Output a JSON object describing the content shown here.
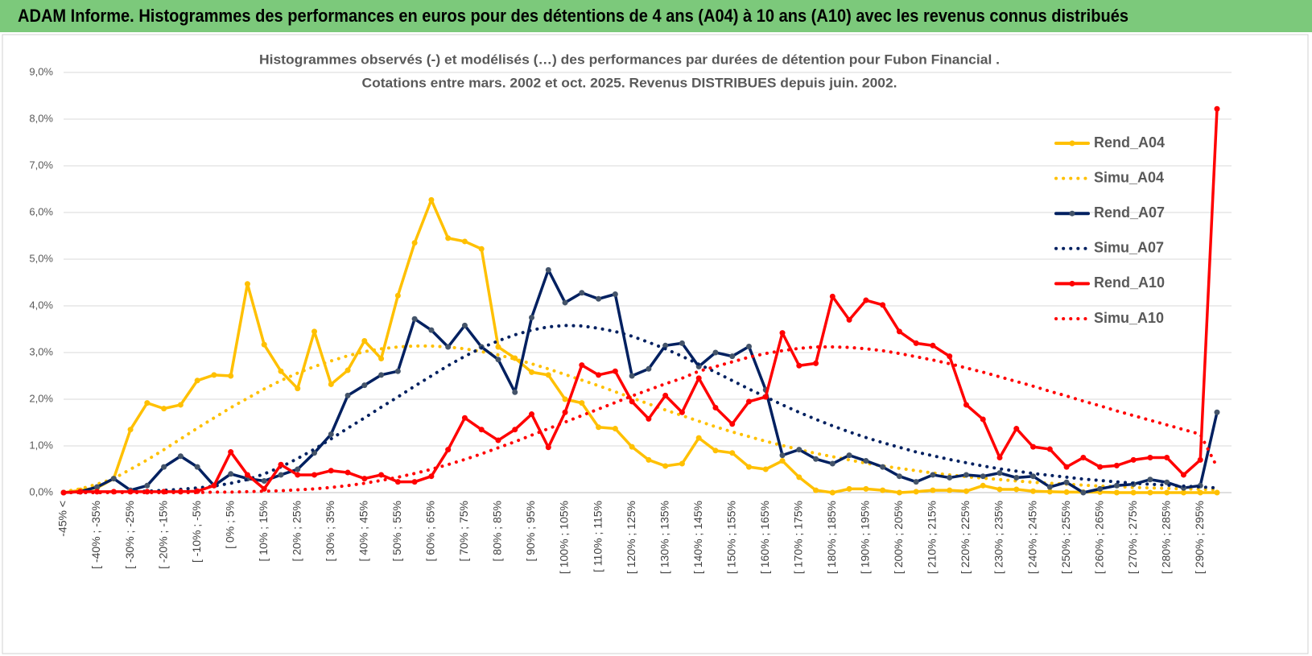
{
  "header": {
    "title": "ADAM Informe. Histogrammes des performances en euros pour des détentions de 4 ans (A04) à 10 ans (A10) avec les revenus connus distribués"
  },
  "chart_data": {
    "type": "line",
    "title": [
      "Histogrammes observés (-) et modélisés (…) des performances par durées de détention pour Fubon Financial .",
      "Cotations entre mars. 2002 et oct. 2025. Revenus DISTRIBUES depuis juin. 2002."
    ],
    "categories": [
      "-45% <",
      null,
      "[ -40% ; -35%",
      null,
      "[ -30% ; -25%",
      null,
      "[ -20% ; -15%",
      null,
      "[ -10% ; -5%",
      null,
      "[ 0% ; 5%",
      null,
      "[ 10% ; 15%",
      null,
      "[ 20% ; 25%",
      null,
      "[ 30% ; 35%",
      null,
      "[ 40% ; 45%",
      null,
      "[ 50% ; 55%",
      null,
      "[ 60% ; 65%",
      null,
      "[ 70% ; 75%",
      null,
      "[ 80% ; 85%",
      null,
      "[ 90% ; 95%",
      null,
      "[ 100% ; 105%",
      null,
      "[ 110% ; 115%",
      null,
      "[ 120% ; 125%",
      null,
      "[ 130% ; 135%",
      null,
      "[ 140% ; 145%",
      null,
      "[ 150% ; 155%",
      null,
      "[ 160% ; 165%",
      null,
      "[ 170% ; 175%",
      null,
      "[ 180% ; 185%",
      null,
      "[ 190% ; 195%",
      null,
      "[ 200% ; 205%",
      null,
      "[ 210% ; 215%",
      null,
      "[ 220% ; 225%",
      null,
      "[ 230% ; 235%",
      null,
      "[ 240% ; 245%",
      null,
      "[ 250% ; 255%",
      null,
      "[ 260% ; 265%",
      null,
      "[ 270% ; 275%",
      null,
      "[ 280% ; 285%",
      null,
      "[ 290% ; 295%",
      null
    ],
    "series": [
      {
        "name": "Rend_A04",
        "color": "#ffc000",
        "style": "solid",
        "marker_color": "#ffc000",
        "values": [
          0,
          0.05,
          0.1,
          0.3,
          1.35,
          1.92,
          1.8,
          1.88,
          2.4,
          2.52,
          2.5,
          4.47,
          3.17,
          2.6,
          2.23,
          3.45,
          2.32,
          2.62,
          3.25,
          2.87,
          4.22,
          5.35,
          6.27,
          5.45,
          5.38,
          5.22,
          3.12,
          2.88,
          2.58,
          2.52,
          2.0,
          1.92,
          1.4,
          1.37,
          0.98,
          0.7,
          0.57,
          0.62,
          1.17,
          0.9,
          0.85,
          0.55,
          0.5,
          0.68,
          0.33,
          0.05,
          0,
          0.08,
          0.08,
          0.05,
          0,
          0.02,
          0.05,
          0.05,
          0.03,
          0.15,
          0.07,
          0.07,
          0.03,
          0.02,
          0.01,
          0.01,
          0.01,
          0,
          0,
          0,
          0,
          0,
          0,
          0
        ]
      },
      {
        "name": "Simu_A04",
        "color": "#ffc000",
        "style": "dotted",
        "values": [
          0.02,
          0.08,
          0.18,
          0.3,
          0.5,
          0.7,
          0.92,
          1.15,
          1.38,
          1.6,
          1.82,
          2.02,
          2.22,
          2.4,
          2.56,
          2.7,
          2.82,
          2.93,
          3.02,
          3.08,
          3.12,
          3.14,
          3.14,
          3.12,
          3.08,
          3.02,
          2.95,
          2.86,
          2.76,
          2.65,
          2.53,
          2.41,
          2.29,
          2.16,
          2.03,
          1.9,
          1.77,
          1.65,
          1.53,
          1.41,
          1.3,
          1.2,
          1.1,
          1.01,
          0.92,
          0.84,
          0.77,
          0.7,
          0.63,
          0.57,
          0.52,
          0.47,
          0.42,
          0.38,
          0.34,
          0.31,
          0.28,
          0.25,
          0.22,
          0.2,
          0.18,
          0.16,
          0.14,
          0.13,
          0.11,
          0.1,
          0.09,
          0.08,
          0.07,
          0.06
        ]
      },
      {
        "name": "Rend_A07",
        "color": "#002060",
        "style": "solid",
        "marker_color": "#44546a",
        "values": [
          0,
          0.02,
          0.12,
          0.3,
          0.05,
          0.15,
          0.55,
          0.78,
          0.55,
          0.15,
          0.4,
          0.3,
          0.25,
          0.38,
          0.5,
          0.85,
          1.25,
          2.08,
          2.3,
          2.52,
          2.6,
          3.72,
          3.48,
          3.12,
          3.58,
          3.12,
          2.85,
          2.15,
          3.75,
          4.77,
          4.07,
          4.28,
          4.15,
          4.25,
          2.5,
          2.65,
          3.15,
          3.2,
          2.7,
          3.0,
          2.92,
          3.13,
          2.2,
          0.8,
          0.92,
          0.72,
          0.62,
          0.8,
          0.68,
          0.55,
          0.35,
          0.23,
          0.38,
          0.32,
          0.38,
          0.35,
          0.42,
          0.32,
          0.35,
          0.12,
          0.22,
          0,
          0.08,
          0.15,
          0.18,
          0.28,
          0.22,
          0.1,
          0.15,
          1.72
        ]
      },
      {
        "name": "Simu_A07",
        "color": "#002060",
        "style": "dotted",
        "values": [
          0,
          0,
          0,
          0.01,
          0.02,
          0.03,
          0.05,
          0.07,
          0.1,
          0.14,
          0.2,
          0.28,
          0.4,
          0.55,
          0.73,
          0.93,
          1.15,
          1.38,
          1.6,
          1.83,
          2.05,
          2.28,
          2.5,
          2.72,
          2.92,
          3.1,
          3.25,
          3.38,
          3.48,
          3.55,
          3.58,
          3.57,
          3.52,
          3.45,
          3.35,
          3.22,
          3.08,
          2.92,
          2.75,
          2.58,
          2.4,
          2.22,
          2.05,
          1.88,
          1.72,
          1.57,
          1.43,
          1.3,
          1.18,
          1.07,
          0.97,
          0.87,
          0.79,
          0.71,
          0.64,
          0.57,
          0.51,
          0.46,
          0.41,
          0.37,
          0.33,
          0.29,
          0.26,
          0.23,
          0.2,
          0.18,
          0.16,
          0.14,
          0.12,
          0.1
        ]
      },
      {
        "name": "Rend_A10",
        "color": "#ff0000",
        "style": "solid",
        "marker_color": "#ff0000",
        "values": [
          0,
          0.02,
          0.02,
          0.02,
          0.02,
          0.02,
          0.02,
          0.02,
          0.03,
          0.15,
          0.87,
          0.38,
          0.08,
          0.6,
          0.38,
          0.38,
          0.47,
          0.43,
          0.3,
          0.38,
          0.23,
          0.23,
          0.35,
          0.92,
          1.6,
          1.35,
          1.12,
          1.35,
          1.68,
          0.97,
          1.72,
          2.73,
          2.52,
          2.6,
          1.95,
          1.58,
          2.08,
          1.72,
          2.45,
          1.82,
          1.47,
          1.95,
          2.05,
          3.42,
          2.72,
          2.77,
          4.2,
          3.7,
          4.12,
          4.02,
          3.45,
          3.2,
          3.15,
          2.92,
          1.88,
          1.57,
          0.75,
          1.37,
          0.98,
          0.93,
          0.55,
          0.75,
          0.55,
          0.58,
          0.7,
          0.75,
          0.75,
          0.38,
          0.7,
          8.22
        ]
      },
      {
        "name": "Simu_A10",
        "color": "#ff0000",
        "style": "dotted",
        "values": [
          0,
          0,
          0,
          0,
          0,
          0,
          0,
          0,
          0,
          0.01,
          0.01,
          0.02,
          0.03,
          0.04,
          0.06,
          0.08,
          0.11,
          0.15,
          0.2,
          0.26,
          0.33,
          0.41,
          0.5,
          0.6,
          0.71,
          0.83,
          0.96,
          1.09,
          1.23,
          1.37,
          1.51,
          1.65,
          1.79,
          1.93,
          2.07,
          2.2,
          2.33,
          2.45,
          2.6,
          2.7,
          2.8,
          2.9,
          2.98,
          3.04,
          3.09,
          3.12,
          3.12,
          3.11,
          3.08,
          3.04,
          2.98,
          2.91,
          2.84,
          2.76,
          2.67,
          2.58,
          2.48,
          2.38,
          2.28,
          2.17,
          2.07,
          1.96,
          1.86,
          1.75,
          1.65,
          1.55,
          1.45,
          1.35,
          1.25,
          0.55
        ]
      }
    ],
    "ylim": [
      0,
      9
    ],
    "yticks": [
      {
        "value": 0,
        "label": "0,0%"
      },
      {
        "value": 1,
        "label": "1,0%"
      },
      {
        "value": 2,
        "label": "2,0%"
      },
      {
        "value": 3,
        "label": "3,0%"
      },
      {
        "value": 4,
        "label": "4,0%"
      },
      {
        "value": 5,
        "label": "5,0%"
      },
      {
        "value": 6,
        "label": "6,0%"
      },
      {
        "value": 7,
        "label": "7,0%"
      },
      {
        "value": 8,
        "label": "8,0%"
      },
      {
        "value": 9,
        "label": "9,0%"
      }
    ],
    "grid": true,
    "legend": "right"
  }
}
